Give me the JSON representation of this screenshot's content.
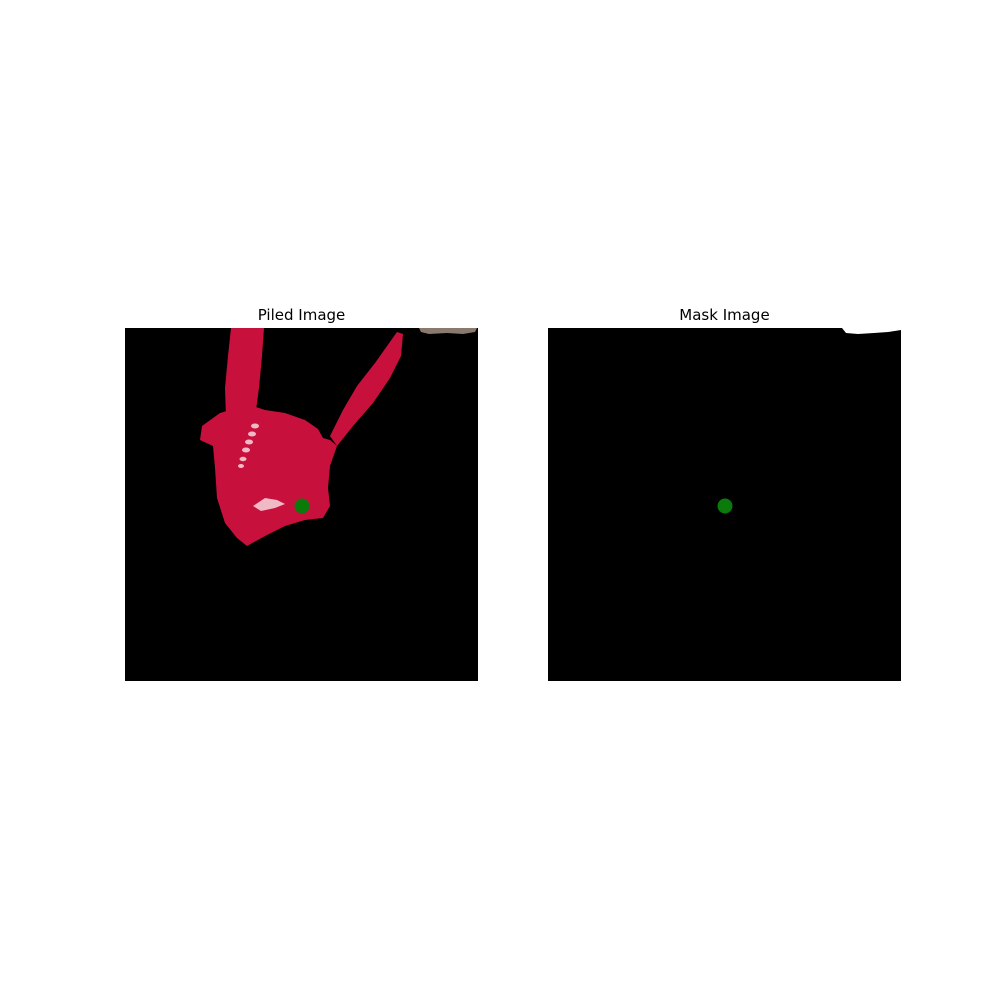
{
  "figure": {
    "panels": [
      {
        "title": "Piled Image",
        "content": "red fabric object on black background with green point marker"
      },
      {
        "title": "Mask Image",
        "content": "black mask with small white region at top edge and green point marker"
      }
    ],
    "colors": {
      "background": "#000000",
      "object": "#c8103c",
      "object_highlight": "#f0b9c6",
      "marker": "#0a7a0a",
      "mask_region": "#ffffff",
      "corner_object": "#8a7a6e"
    }
  }
}
